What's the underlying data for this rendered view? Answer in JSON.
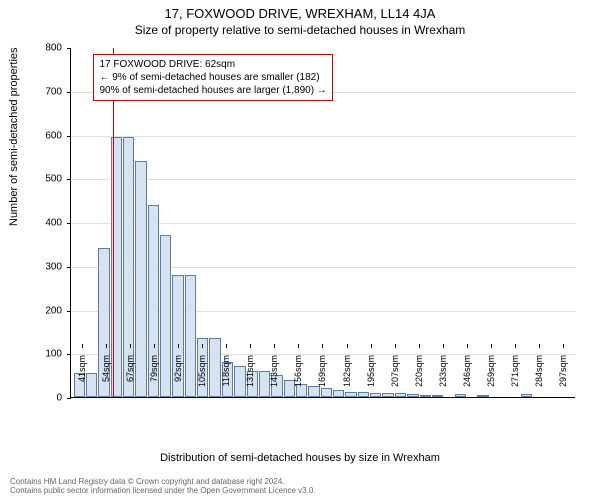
{
  "title_main": "17, FOXWOOD DRIVE, WREXHAM, LL14 4JA",
  "title_sub": "Size of property relative to semi-detached houses in Wrexham",
  "ylabel": "Number of semi-detached properties",
  "xlabel": "Distribution of semi-detached houses by size in Wrexham",
  "chart": {
    "type": "histogram",
    "ylim": [
      0,
      800
    ],
    "ytick_step": 100,
    "background_color": "#ffffff",
    "grid_color": "#e0e0e0",
    "bar_fill": "#d6e2f0",
    "bar_border": "#5b7da8",
    "marker_color": "#d00000",
    "marker_value": 62,
    "x_start": 41,
    "x_step_label": 13,
    "x_step_data": 6.5,
    "x_unit": "sqm",
    "x_labels": [
      "41sqm",
      "54sqm",
      "67sqm",
      "79sqm",
      "92sqm",
      "105sqm",
      "118sqm",
      "131sqm",
      "143sqm",
      "156sqm",
      "169sqm",
      "182sqm",
      "195sqm",
      "207sqm",
      "220sqm",
      "233sqm",
      "246sqm",
      "259sqm",
      "271sqm",
      "284sqm",
      "297sqm"
    ],
    "values": [
      55,
      55,
      340,
      595,
      595,
      540,
      440,
      370,
      280,
      280,
      135,
      135,
      80,
      70,
      60,
      60,
      50,
      40,
      30,
      25,
      20,
      15,
      12,
      12,
      10,
      10,
      10,
      8,
      3,
      2,
      0,
      8,
      0,
      4,
      0,
      0,
      0,
      8,
      0,
      0,
      0,
      0
    ]
  },
  "annotation": {
    "line1": "17 FOXWOOD DRIVE: 62sqm",
    "line2": "← 9% of semi-detached houses are smaller (182)",
    "line3": "90% of semi-detached houses are larger (1,890) →"
  },
  "footer": {
    "line1": "Contains HM Land Registry data © Crown copyright and database right 2024.",
    "line2": "Contains public sector information licensed under the Open Government Licence v3.0."
  },
  "fonts": {
    "title_fontsize": 13,
    "subtitle_fontsize": 12,
    "axis_label_fontsize": 11,
    "tick_fontsize": 10,
    "annotation_fontsize": 10,
    "footer_fontsize": 8
  }
}
